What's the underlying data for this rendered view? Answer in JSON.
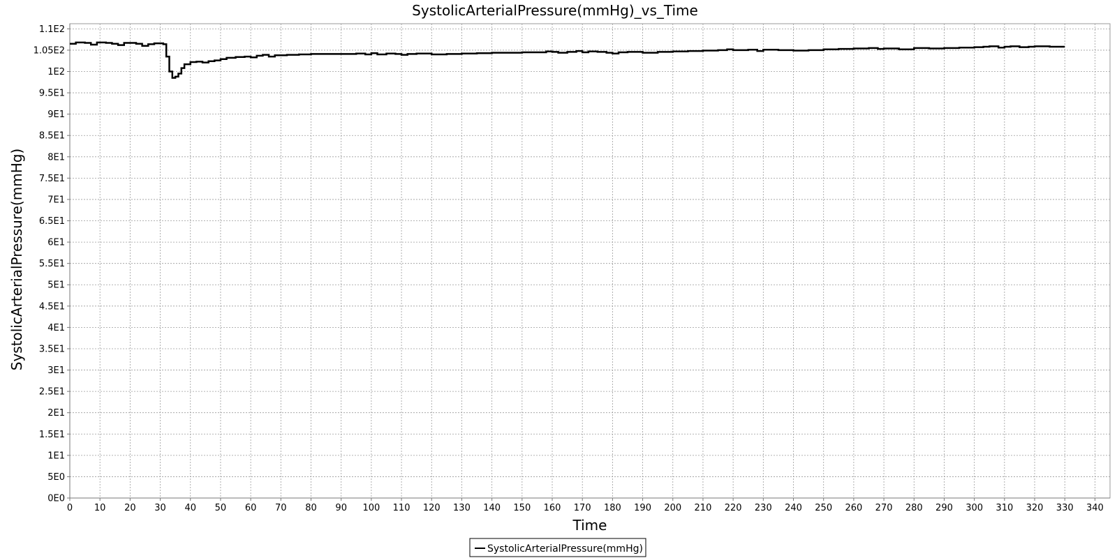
{
  "chart_data": {
    "type": "line",
    "title": "SystolicArterialPressure(mmHg)_vs_Time",
    "xlabel": "Time",
    "ylabel": "SystolicArterialPressure(mmHg)",
    "xlim": [
      0,
      345
    ],
    "ylim": [
      0,
      111.2
    ],
    "x_ticks": [
      0,
      10,
      20,
      30,
      40,
      50,
      60,
      70,
      80,
      90,
      100,
      110,
      120,
      130,
      140,
      150,
      160,
      170,
      180,
      190,
      200,
      210,
      220,
      230,
      240,
      250,
      260,
      270,
      280,
      290,
      300,
      310,
      320,
      330,
      340
    ],
    "y_ticks": [
      {
        "value": 0,
        "label": "0E0"
      },
      {
        "value": 5,
        "label": "5E0"
      },
      {
        "value": 10,
        "label": "1E1"
      },
      {
        "value": 15,
        "label": "1.5E1"
      },
      {
        "value": 20,
        "label": "2E1"
      },
      {
        "value": 25,
        "label": "2.5E1"
      },
      {
        "value": 30,
        "label": "3E1"
      },
      {
        "value": 35,
        "label": "3.5E1"
      },
      {
        "value": 40,
        "label": "4E1"
      },
      {
        "value": 45,
        "label": "4.5E1"
      },
      {
        "value": 50,
        "label": "5E1"
      },
      {
        "value": 55,
        "label": "5.5E1"
      },
      {
        "value": 60,
        "label": "6E1"
      },
      {
        "value": 65,
        "label": "6.5E1"
      },
      {
        "value": 70,
        "label": "7E1"
      },
      {
        "value": 75,
        "label": "7.5E1"
      },
      {
        "value": 80,
        "label": "8E1"
      },
      {
        "value": 85,
        "label": "8.5E1"
      },
      {
        "value": 90,
        "label": "9E1"
      },
      {
        "value": 95,
        "label": "9.5E1"
      },
      {
        "value": 100,
        "label": "1E2"
      },
      {
        "value": 105,
        "label": "1.05E2"
      },
      {
        "value": 110,
        "label": "1.1E2"
      }
    ],
    "grid": true,
    "legend": "bottom-center",
    "series": [
      {
        "name": "SystolicArterialPressure(mmHg)",
        "color": "#000000",
        "step": true,
        "x": [
          0,
          2,
          5,
          7,
          9,
          12,
          14,
          16,
          18,
          22,
          24,
          26,
          28,
          31,
          32,
          33,
          34,
          35,
          36,
          37,
          38,
          40,
          42,
          44,
          46,
          48,
          50,
          52,
          55,
          58,
          60,
          62,
          64,
          66,
          68,
          72,
          76,
          80,
          85,
          90,
          95,
          98,
          100,
          102,
          105,
          108,
          110,
          112,
          115,
          120,
          125,
          130,
          135,
          140,
          150,
          158,
          160,
          162,
          165,
          168,
          170,
          172,
          175,
          178,
          180,
          182,
          185,
          190,
          195,
          200,
          205,
          210,
          215,
          218,
          220,
          225,
          228,
          230,
          235,
          240,
          245,
          250,
          255,
          260,
          265,
          268,
          270,
          275,
          280,
          285,
          290,
          295,
          300,
          303,
          305,
          308,
          310,
          312,
          315,
          318,
          320,
          325,
          330
        ],
        "y": [
          106.5,
          106.8,
          106.7,
          106.3,
          106.8,
          106.7,
          106.5,
          106.2,
          106.7,
          106.5,
          106.0,
          106.4,
          106.6,
          106.4,
          103.5,
          100.0,
          98.5,
          98.8,
          99.5,
          100.8,
          101.7,
          102.2,
          102.3,
          102.1,
          102.4,
          102.6,
          102.9,
          103.2,
          103.4,
          103.5,
          103.3,
          103.7,
          103.9,
          103.5,
          103.8,
          103.9,
          104.0,
          104.1,
          104.1,
          104.1,
          104.2,
          104.0,
          104.3,
          104.0,
          104.2,
          104.1,
          103.9,
          104.1,
          104.2,
          104.0,
          104.1,
          104.2,
          104.3,
          104.4,
          104.5,
          104.7,
          104.6,
          104.4,
          104.6,
          104.8,
          104.5,
          104.7,
          104.6,
          104.4,
          104.2,
          104.5,
          104.6,
          104.4,
          104.6,
          104.7,
          104.8,
          104.9,
          105.0,
          105.2,
          105.0,
          105.1,
          104.8,
          105.1,
          105.0,
          104.9,
          105.0,
          105.2,
          105.3,
          105.4,
          105.5,
          105.3,
          105.4,
          105.2,
          105.5,
          105.4,
          105.5,
          105.6,
          105.7,
          105.8,
          105.9,
          105.6,
          105.8,
          105.9,
          105.7,
          105.8,
          105.9,
          105.8,
          105.8
        ]
      }
    ]
  }
}
